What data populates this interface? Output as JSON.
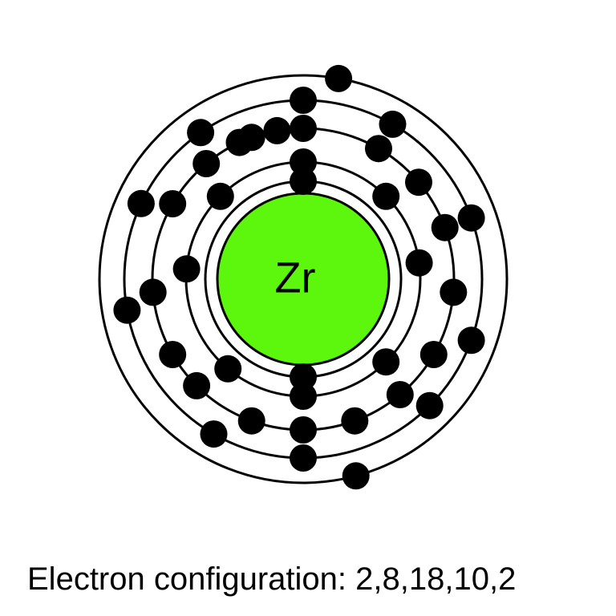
{
  "nucleus": {
    "symbol": "Zr",
    "color": "#5cf70c"
  },
  "shells": [
    {
      "electrons": 2
    },
    {
      "electrons": 8
    },
    {
      "electrons": 18
    },
    {
      "electrons": 10
    },
    {
      "electrons": 2
    }
  ],
  "caption": {
    "label": "Electron configuration:",
    "value": "2,8,18,10,2"
  },
  "colors": {
    "electron": "#000000",
    "shell": "#000000",
    "background": "#ffffff"
  }
}
